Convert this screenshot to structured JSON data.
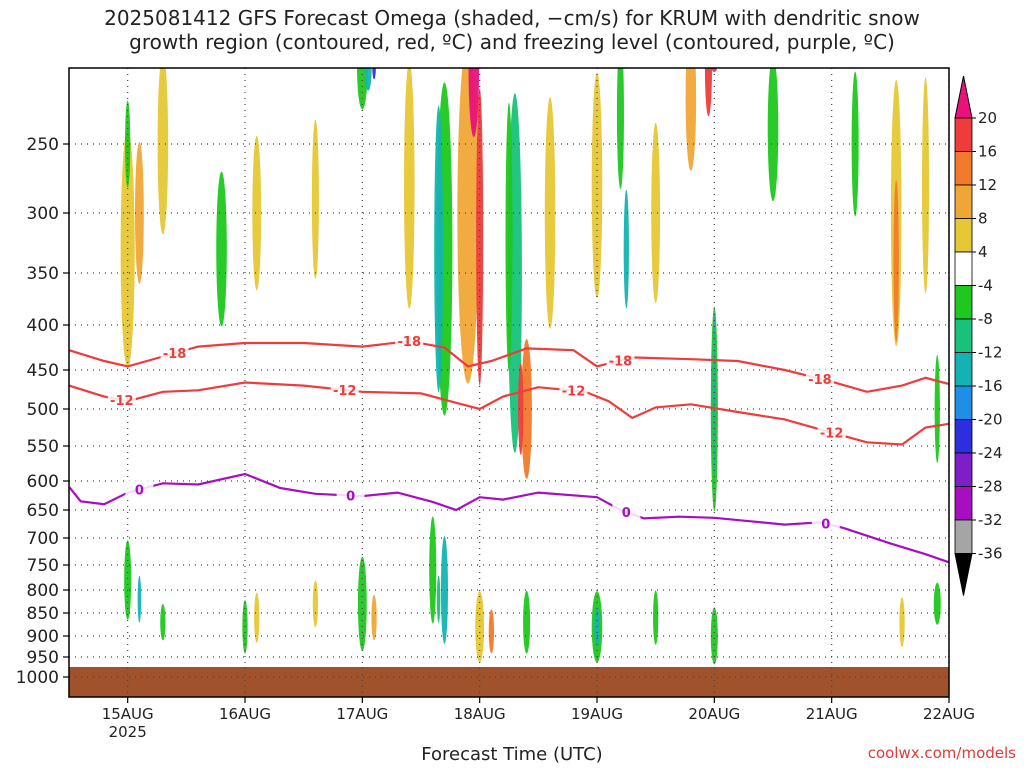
{
  "title": {
    "line1": "2025081412 GFS Forecast Omega (shaded, −cm/s) for KRUM with dendritic snow",
    "line2": "growth region (contoured, red, ºC) and freezing level (contoured, purple, ºC)"
  },
  "xlabel": "Forecast Time (UTC)",
  "credit": "coolwx.com/models",
  "chart_data": {
    "type": "heatmap",
    "title": "2025081412 GFS Forecast Omega (shaded, −cm/s) for KRUM with dendritic snow growth region (contoured, red, ºC) and freezing level (contoured, purple, ºC)",
    "xlabel": "Forecast Time (UTC)",
    "ylabel": "",
    "x_range_days": [
      14.5,
      22.0
    ],
    "y_range_hPa": [
      200,
      1030
    ],
    "x_ticks": [
      {
        "day": 15,
        "label": "15AUG",
        "sub": "2025"
      },
      {
        "day": 16,
        "label": "16AUG",
        "sub": ""
      },
      {
        "day": 17,
        "label": "17AUG",
        "sub": ""
      },
      {
        "day": 18,
        "label": "18AUG",
        "sub": ""
      },
      {
        "day": 19,
        "label": "19AUG",
        "sub": ""
      },
      {
        "day": 20,
        "label": "20AUG",
        "sub": ""
      },
      {
        "day": 21,
        "label": "21AUG",
        "sub": ""
      },
      {
        "day": 22,
        "label": "22AUG",
        "sub": ""
      }
    ],
    "y_ticks": [
      "250",
      "300",
      "350",
      "400",
      "450",
      "500",
      "550",
      "600",
      "650",
      "700",
      "750",
      "800",
      "850",
      "900",
      "950",
      "1000"
    ],
    "grid": true,
    "colorbar": {
      "labels": [
        "20",
        "16",
        "12",
        "8",
        "4",
        "-4",
        "-8",
        "-12",
        "-16",
        "-20",
        "-24",
        "-28",
        "-32",
        "-36"
      ],
      "colors": [
        "#e8127a",
        "#ef3b3b",
        "#f27a2a",
        "#f0a637",
        "#e6c734",
        "#ffffff",
        "#1ec81e",
        "#18c27a",
        "#14b3b3",
        "#1e8ee6",
        "#2d2ee0",
        "#7d1ec8",
        "#a70ec2",
        "#a5a5a5",
        "#000000"
      ]
    },
    "contours": [
      {
        "name": "-18",
        "color": "#ef3b3b",
        "labels_at_days": [
          15.4,
          17.4,
          19.2,
          20.9
        ],
        "points": [
          [
            14.5,
            428
          ],
          [
            14.8,
            440
          ],
          [
            15.0,
            446
          ],
          [
            15.3,
            435
          ],
          [
            15.6,
            424
          ],
          [
            16.0,
            420
          ],
          [
            16.5,
            420
          ],
          [
            17.0,
            424
          ],
          [
            17.4,
            418
          ],
          [
            17.7,
            425
          ],
          [
            17.9,
            446
          ],
          [
            18.1,
            440
          ],
          [
            18.4,
            426
          ],
          [
            18.8,
            428
          ],
          [
            19.0,
            446
          ],
          [
            19.3,
            436
          ],
          [
            19.8,
            438
          ],
          [
            20.2,
            440
          ],
          [
            20.6,
            450
          ],
          [
            21.0,
            465
          ],
          [
            21.3,
            478
          ],
          [
            21.6,
            470
          ],
          [
            21.8,
            460
          ],
          [
            22.0,
            468
          ]
        ]
      },
      {
        "name": "-12",
        "color": "#ef3b3b",
        "labels_at_days": [
          14.95,
          16.85,
          18.8,
          21.0
        ],
        "points": [
          [
            14.5,
            470
          ],
          [
            14.8,
            484
          ],
          [
            15.0,
            490
          ],
          [
            15.3,
            478
          ],
          [
            15.6,
            476
          ],
          [
            16.0,
            466
          ],
          [
            16.5,
            470
          ],
          [
            17.0,
            478
          ],
          [
            17.5,
            480
          ],
          [
            17.8,
            492
          ],
          [
            18.0,
            500
          ],
          [
            18.2,
            484
          ],
          [
            18.5,
            472
          ],
          [
            18.9,
            478
          ],
          [
            19.1,
            490
          ],
          [
            19.3,
            512
          ],
          [
            19.5,
            498
          ],
          [
            19.8,
            494
          ],
          [
            20.2,
            504
          ],
          [
            20.6,
            514
          ],
          [
            21.0,
            532
          ],
          [
            21.3,
            545
          ],
          [
            21.6,
            548
          ],
          [
            21.8,
            525
          ],
          [
            22.0,
            520
          ]
        ]
      },
      {
        "name": "0",
        "color": "#a70ec2",
        "labels_at_days": [
          15.1,
          16.9,
          19.25,
          20.95
        ],
        "points": [
          [
            14.5,
            610
          ],
          [
            14.6,
            635
          ],
          [
            14.8,
            640
          ],
          [
            15.0,
            620
          ],
          [
            15.3,
            604
          ],
          [
            15.6,
            606
          ],
          [
            16.0,
            590
          ],
          [
            16.3,
            612
          ],
          [
            16.6,
            622
          ],
          [
            17.0,
            626
          ],
          [
            17.3,
            620
          ],
          [
            17.6,
            636
          ],
          [
            17.8,
            650
          ],
          [
            18.0,
            628
          ],
          [
            18.2,
            632
          ],
          [
            18.5,
            620
          ],
          [
            19.0,
            628
          ],
          [
            19.2,
            650
          ],
          [
            19.4,
            665
          ],
          [
            19.7,
            662
          ],
          [
            20.0,
            664
          ],
          [
            20.3,
            670
          ],
          [
            20.6,
            676
          ],
          [
            20.9,
            672
          ],
          [
            21.1,
            682
          ],
          [
            21.5,
            710
          ],
          [
            21.8,
            730
          ],
          [
            22.0,
            745
          ]
        ]
      }
    ]
  }
}
